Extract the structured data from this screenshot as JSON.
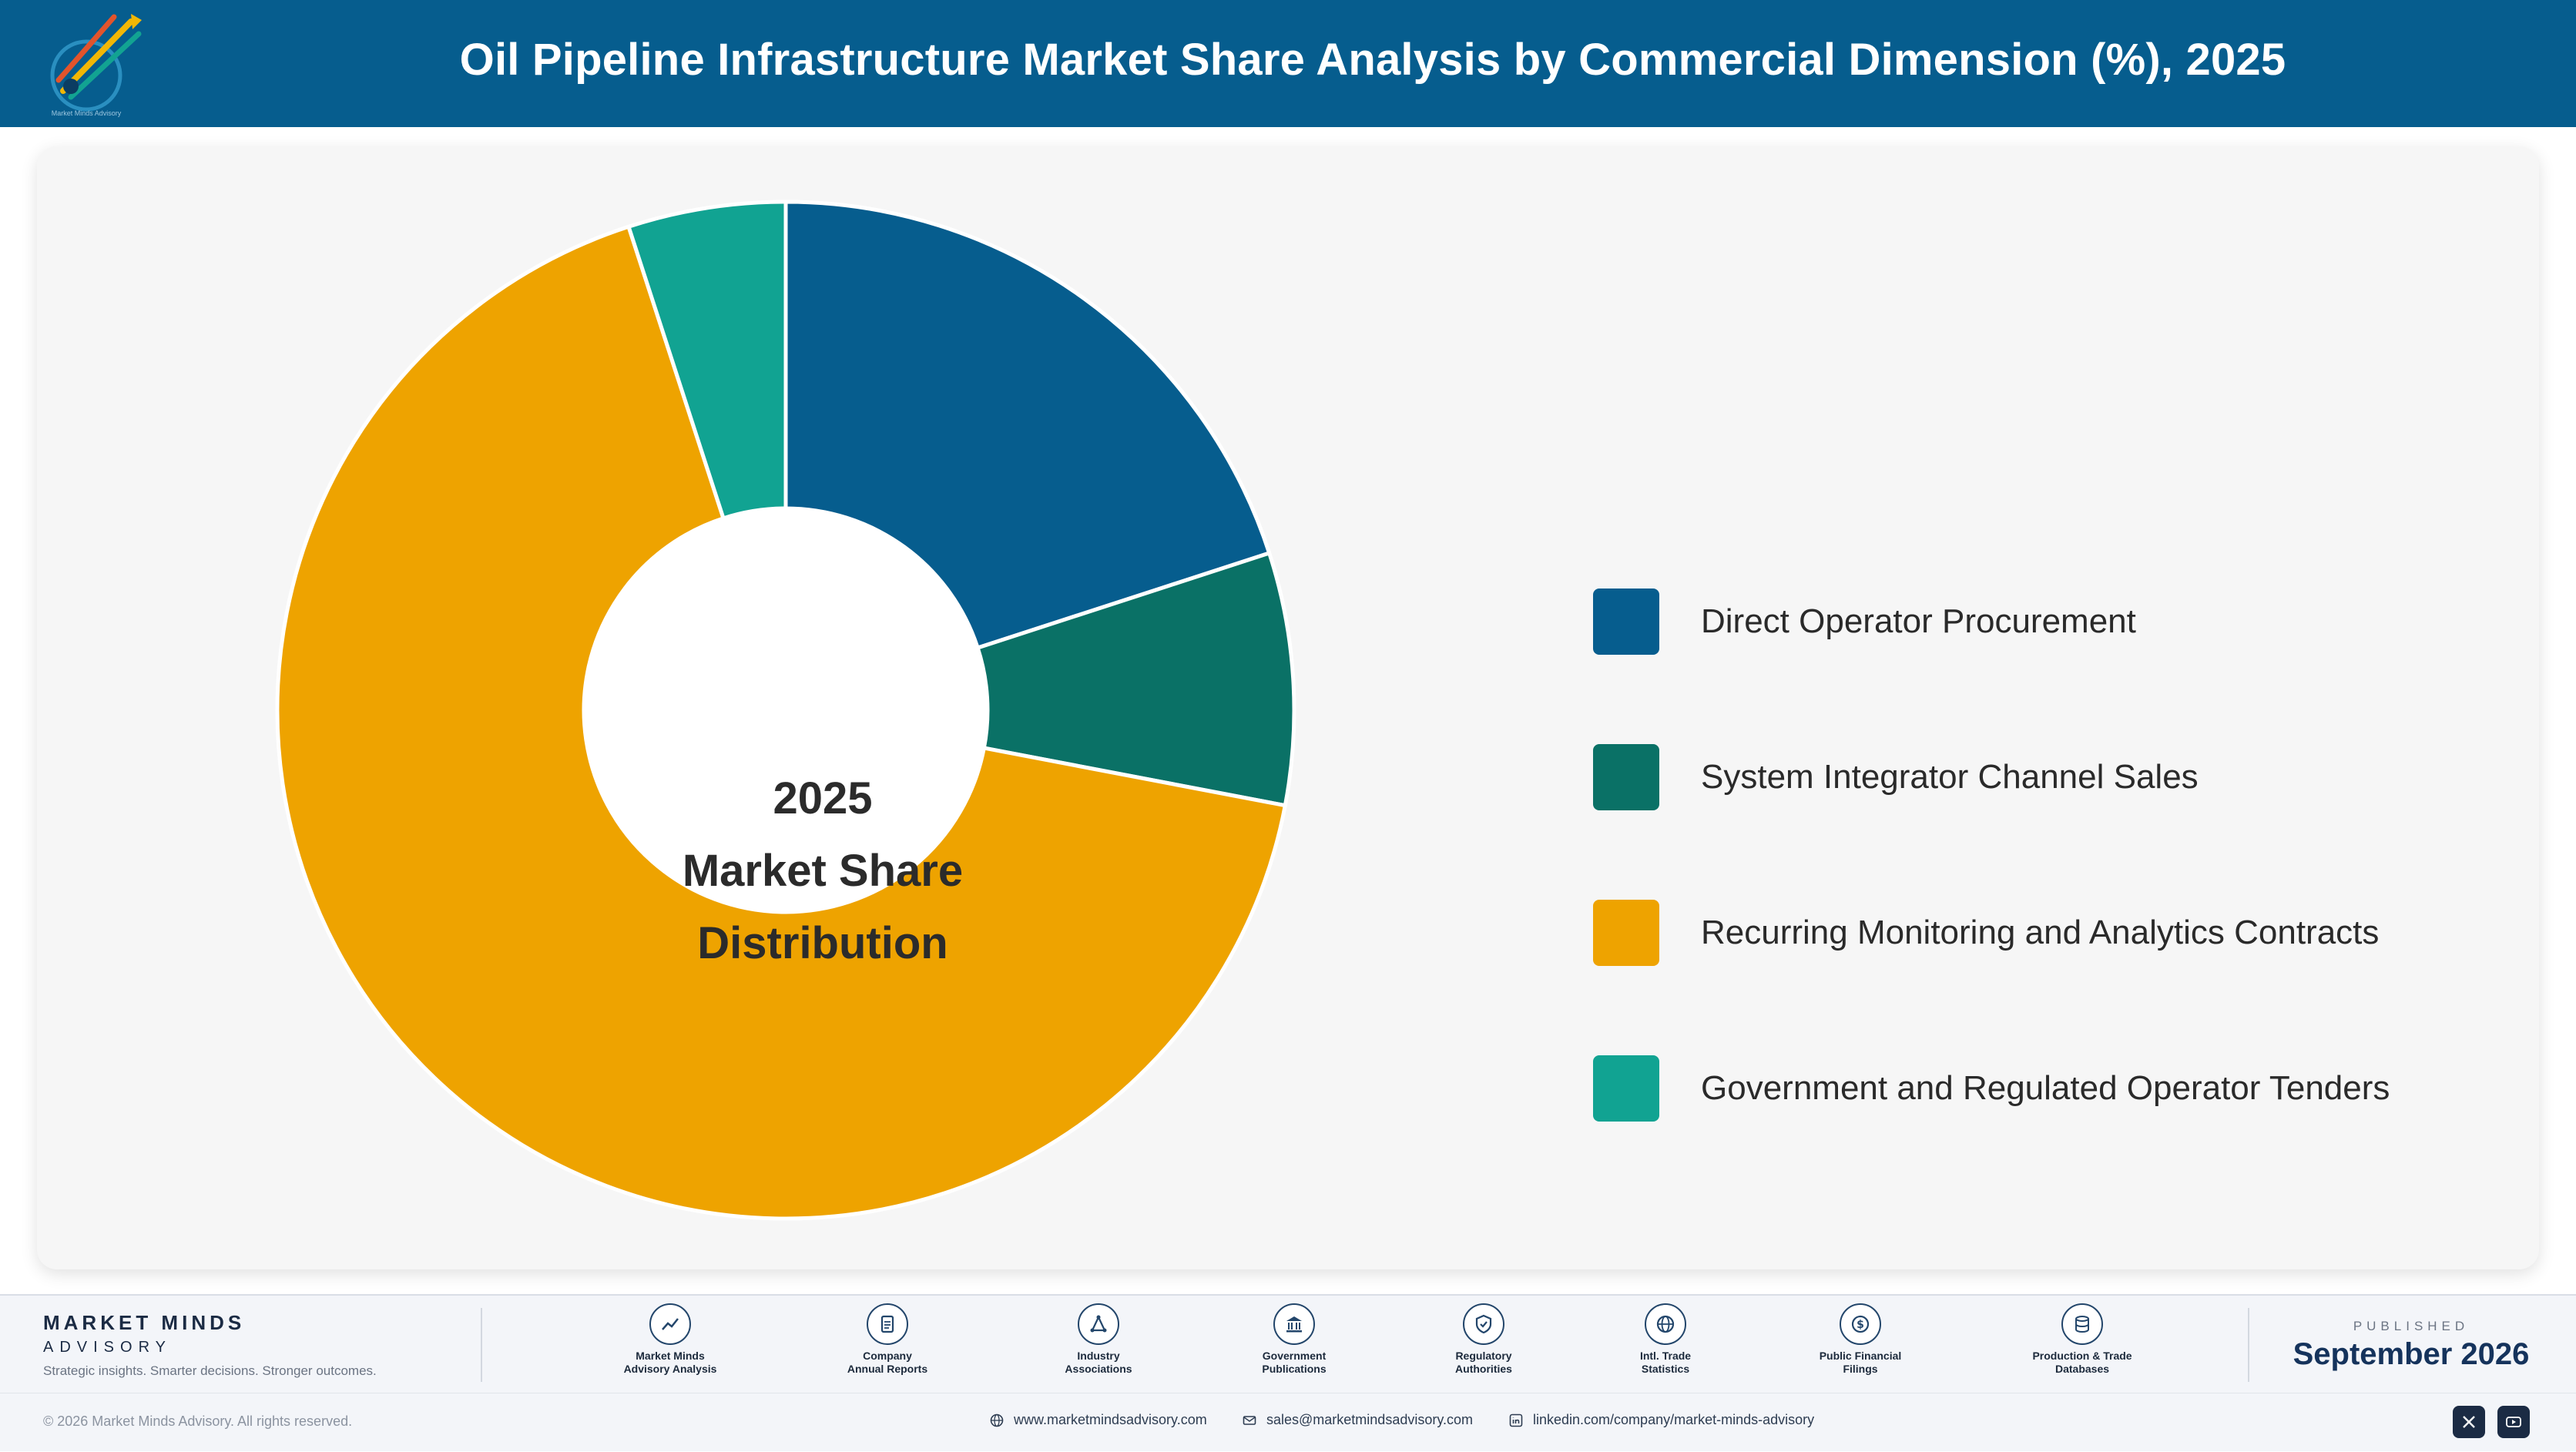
{
  "header": {
    "title": "Oil Pipeline Infrastructure Market Share Analysis by Commercial Dimension (%), 2025",
    "logo_text": "Market Minds Advisory"
  },
  "chart_data": {
    "type": "pie",
    "variant": "donut",
    "title": "Oil Pipeline Infrastructure Market Share Analysis by Commercial Dimension (%), 2025",
    "center_label": [
      "2025",
      "Market Share",
      "Distribution"
    ],
    "categories": [
      "Direct Operator Procurement",
      "System Integrator Channel Sales",
      "Recurring Monitoring and Analytics Contracts",
      "Government and Regulated Operator Tenders"
    ],
    "values": [
      20,
      8,
      67,
      5
    ],
    "colors": [
      "#065d8e",
      "#0a7166",
      "#eea300",
      "#11a392"
    ],
    "legend_position": "right"
  },
  "footer": {
    "brand_name": "MARKET MINDS",
    "brand_sub": "ADVISORY",
    "tagline": "Strategic insights. Smarter decisions. Stronger outcomes.",
    "sources": [
      {
        "label": "Market Minds\nAdvisory Analysis",
        "icon": "trend-chart-icon"
      },
      {
        "label": "Company\nAnnual Reports",
        "icon": "document-icon"
      },
      {
        "label": "Industry\nAssociations",
        "icon": "network-icon"
      },
      {
        "label": "Government\nPublications",
        "icon": "government-building-icon"
      },
      {
        "label": "Regulatory\nAuthorities",
        "icon": "shield-check-icon"
      },
      {
        "label": "Intl. Trade\nStatistics",
        "icon": "globe-icon"
      },
      {
        "label": "Public Financial\nFilings",
        "icon": "dollar-circle-icon"
      },
      {
        "label": "Production & Trade\nDatabases",
        "icon": "database-icon"
      }
    ],
    "published_label": "PUBLISHED",
    "published_date": "September 2026",
    "copyright": "© 2026 Market Minds Advisory. All rights reserved.",
    "website": "www.marketmindsadvisory.com",
    "email": "sales@marketmindsadvisory.com",
    "linkedin": "linkedin.com/company/market-minds-advisory",
    "social_icons": [
      "x-icon",
      "youtube-icon"
    ]
  }
}
